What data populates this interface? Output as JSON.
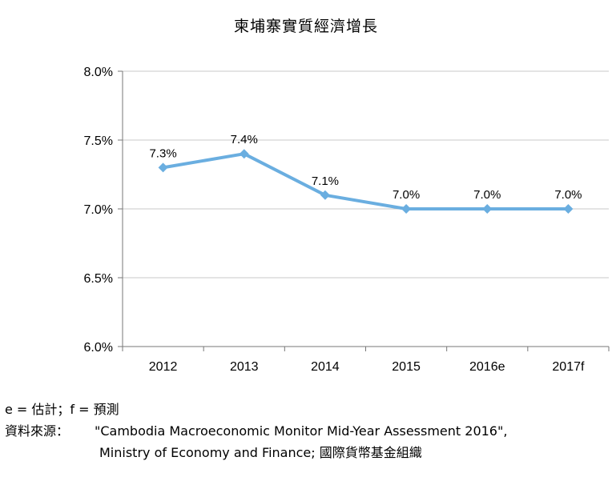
{
  "chart_data": {
    "type": "line",
    "title": "柬埔寨實質經濟增長",
    "categories": [
      "2012",
      "2013",
      "2014",
      "2015",
      "2016e",
      "2017f"
    ],
    "series": [
      {
        "values": [
          7.3,
          7.4,
          7.1,
          7.0,
          7.0,
          7.0
        ],
        "data_labels": [
          "7.3%",
          "7.4%",
          "7.1%",
          "7.0%",
          "7.0%",
          "7.0%"
        ]
      }
    ],
    "y_ticks": [
      6.0,
      6.5,
      7.0,
      7.5,
      8.0
    ],
    "y_tick_labels": [
      "6.0%",
      "6.5%",
      "7.0%",
      "7.5%",
      "8.0%"
    ],
    "ylim": [
      6.0,
      8.0
    ],
    "grid": true,
    "line_color": "#6aaee0"
  },
  "notes": {
    "legend_note": "e = 估計；f = 預測",
    "source_label": "資料來源：",
    "source_line1": "\"Cambodia Macroeconomic Monitor Mid-Year Assessment 2016\",",
    "source_line2": "Ministry of Economy and Finance; 國際貨幣基金組織"
  }
}
